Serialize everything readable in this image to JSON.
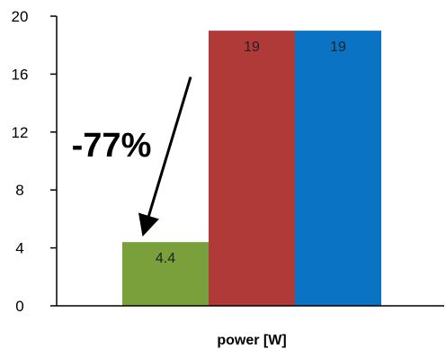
{
  "chart_data": {
    "type": "bar",
    "categories": [
      "power [W]"
    ],
    "series": [
      {
        "values": [
          4.4
        ],
        "color": "#7aa03b"
      },
      {
        "values": [
          19
        ],
        "color": "#b03a38"
      },
      {
        "values": [
          19
        ],
        "color": "#0a73c4"
      }
    ],
    "data_labels": [
      "4.4",
      "19",
      "19"
    ],
    "xlabel": "power [W]",
    "ylabel": "",
    "ylim": [
      0,
      20
    ],
    "yticks": [
      0,
      4,
      8,
      12,
      16,
      20
    ],
    "ytick_labels": [
      "0",
      "4",
      "8",
      "12",
      "16",
      "20"
    ],
    "grid": false,
    "legend": "none",
    "annotation": {
      "text": "-77%",
      "arrow": {
        "from_value": 15.8,
        "to_value": 5.5
      }
    }
  }
}
